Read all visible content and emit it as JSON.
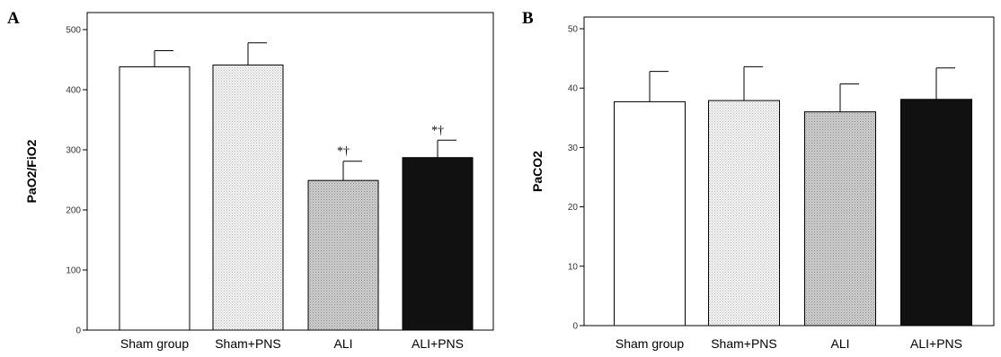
{
  "chart_data": [
    {
      "panel_label": "A",
      "type": "bar",
      "ylabel": "PaO2/FiO2",
      "ylim": [
        0,
        500
      ],
      "yticks": [
        0,
        100,
        200,
        300,
        400,
        500
      ],
      "categories": [
        "Sham group",
        "Sham+PNS",
        "ALI",
        "ALI+PNS"
      ],
      "values": [
        438,
        441,
        249,
        287
      ],
      "errors": [
        27,
        37,
        32,
        29
      ],
      "annotations": [
        "",
        "",
        "*†",
        "*†"
      ],
      "fills": [
        "white",
        "light-dotted",
        "gray-dotted",
        "black"
      ],
      "grid": false
    },
    {
      "panel_label": "B",
      "type": "bar",
      "ylabel": "PaCO2",
      "ylim": [
        0,
        50
      ],
      "yticks": [
        0,
        10,
        20,
        30,
        40,
        50
      ],
      "categories": [
        "Sham group",
        "Sham+PNS",
        "ALI",
        "ALI+PNS"
      ],
      "values": [
        37.7,
        37.9,
        36.0,
        38.1
      ],
      "errors": [
        5.1,
        5.7,
        4.7,
        5.3
      ],
      "annotations": [
        "",
        "",
        "",
        ""
      ],
      "fills": [
        "white",
        "light-dotted",
        "gray-dotted",
        "black"
      ],
      "grid": false
    }
  ]
}
